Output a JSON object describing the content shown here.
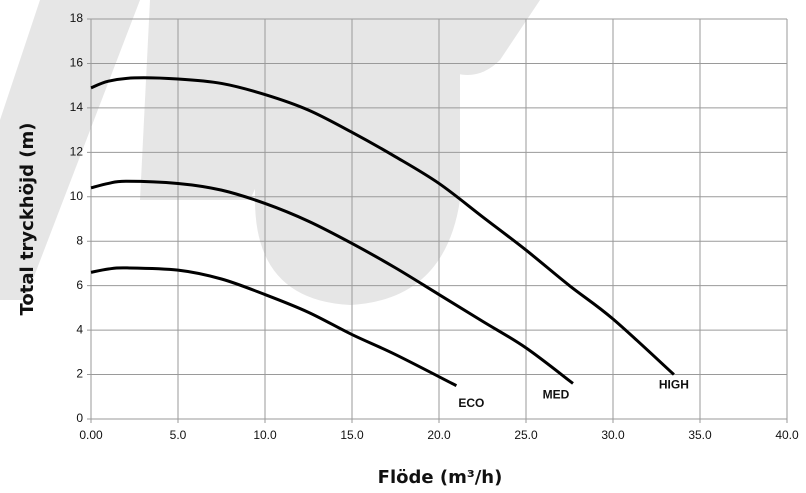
{
  "chart_data": {
    "type": "line",
    "xlabel": "Flöde (m³/h)",
    "ylabel": "Total tryckhöjd (m)",
    "xlim": [
      0,
      40
    ],
    "ylim": [
      0,
      18
    ],
    "xticks": [
      {
        "value": 0,
        "label": "0.00"
      },
      {
        "value": 5,
        "label": "5.0"
      },
      {
        "value": 10,
        "label": "10.0"
      },
      {
        "value": 15,
        "label": "15.0"
      },
      {
        "value": 20,
        "label": "20.0"
      },
      {
        "value": 25,
        "label": "25.0"
      },
      {
        "value": 30,
        "label": "30.0"
      },
      {
        "value": 35,
        "label": "35.0"
      },
      {
        "value": 40,
        "label": "40.0"
      }
    ],
    "yticks": [
      0,
      2,
      4,
      6,
      8,
      10,
      12,
      14,
      16,
      18
    ],
    "grid": true,
    "series": [
      {
        "name": "HIGH",
        "color": "#000000",
        "x": [
          0,
          1,
          2.5,
          5,
          7.5,
          10,
          12.5,
          15,
          17.5,
          20,
          22.5,
          25,
          27.5,
          30,
          33.5
        ],
        "values": [
          14.9,
          15.2,
          15.35,
          15.3,
          15.1,
          14.6,
          13.9,
          12.9,
          11.8,
          10.6,
          9.1,
          7.6,
          6.0,
          4.5,
          2.0
        ]
      },
      {
        "name": "MED",
        "color": "#000000",
        "x": [
          0,
          1,
          2,
          5,
          7.5,
          10,
          12.5,
          15,
          17.5,
          20,
          22.5,
          25,
          27.7
        ],
        "values": [
          10.4,
          10.6,
          10.7,
          10.6,
          10.3,
          9.7,
          8.9,
          7.9,
          6.8,
          5.6,
          4.4,
          3.2,
          1.6
        ]
      },
      {
        "name": "ECO",
        "color": "#000000",
        "x": [
          0,
          1,
          2,
          5,
          7.5,
          10,
          12.5,
          15,
          17.5,
          21
        ],
        "values": [
          6.6,
          6.75,
          6.8,
          6.7,
          6.3,
          5.6,
          4.8,
          3.8,
          2.9,
          1.5
        ]
      }
    ]
  }
}
